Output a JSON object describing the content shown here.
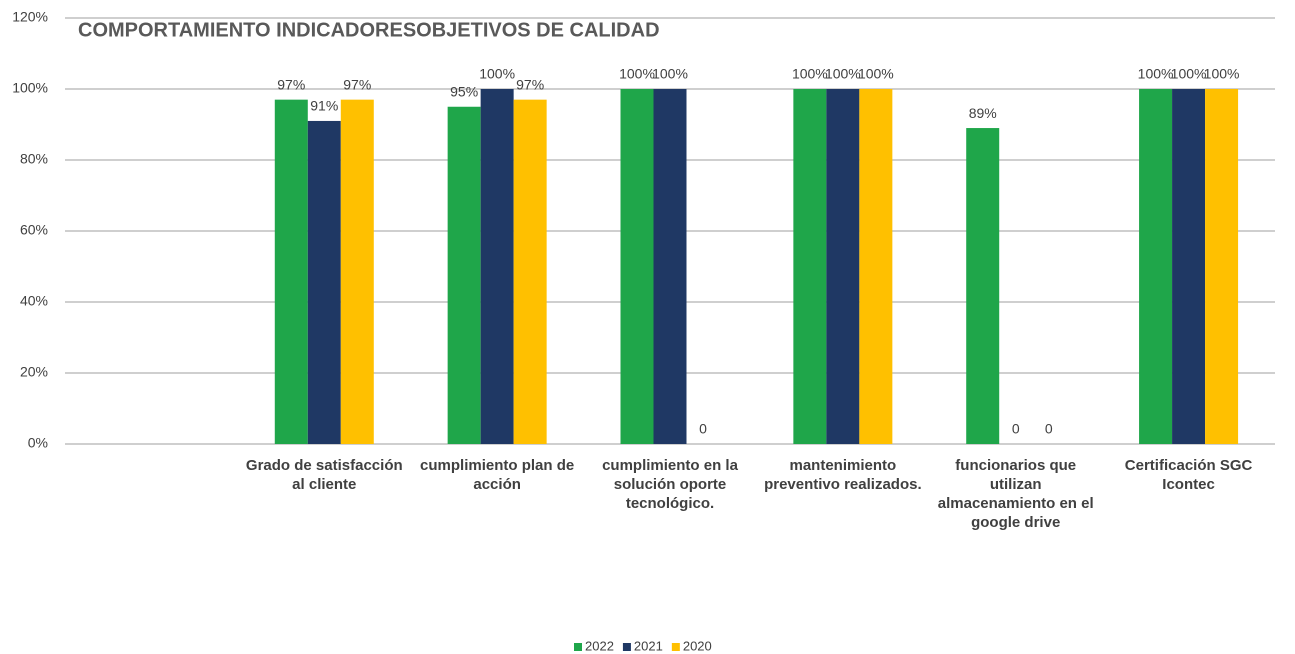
{
  "chart_data": {
    "type": "bar",
    "title": "COMPORTAMIENTO INDICADORESOBJETIVOS  DE CALIDAD",
    "categories": [
      null,
      "Grado de satisfacción al cliente",
      "cumplimiento plan de acción",
      "cumplimiento en la solución oporte tecnológico.",
      "mantenimiento preventivo realizados.",
      "funcionarios que utilizan almacenamiento en el google drive",
      "Certificación SGC Icontec"
    ],
    "series": [
      {
        "name": "2022",
        "color": "#1fa64a",
        "values": [
          null,
          97,
          95,
          100,
          100,
          89,
          100
        ],
        "value_labels": [
          null,
          "97%",
          "95%",
          "100%",
          "100%",
          "89%",
          "100%"
        ]
      },
      {
        "name": "2021",
        "color": "#1f3864",
        "values": [
          null,
          91,
          100,
          100,
          100,
          0,
          100
        ],
        "value_labels": [
          null,
          "91%",
          "100%",
          "100%",
          "100%",
          "0",
          "100%"
        ]
      },
      {
        "name": "2020",
        "color": "#ffc000",
        "values": [
          null,
          97,
          97,
          0,
          100,
          0,
          100
        ],
        "value_labels": [
          null,
          "97%",
          "97%",
          "0",
          "100%",
          "0",
          "100%"
        ]
      }
    ],
    "ylim": [
      0,
      120
    ],
    "yticks": [
      {
        "value": 0,
        "label": "0%"
      },
      {
        "value": 20,
        "label": "20%"
      },
      {
        "value": 40,
        "label": "40%"
      },
      {
        "value": 60,
        "label": "60%"
      },
      {
        "value": 80,
        "label": "80%"
      },
      {
        "value": 100,
        "label": "100%"
      },
      {
        "value": 120,
        "label": "120%"
      }
    ],
    "grid": true,
    "legend": "bottom"
  }
}
